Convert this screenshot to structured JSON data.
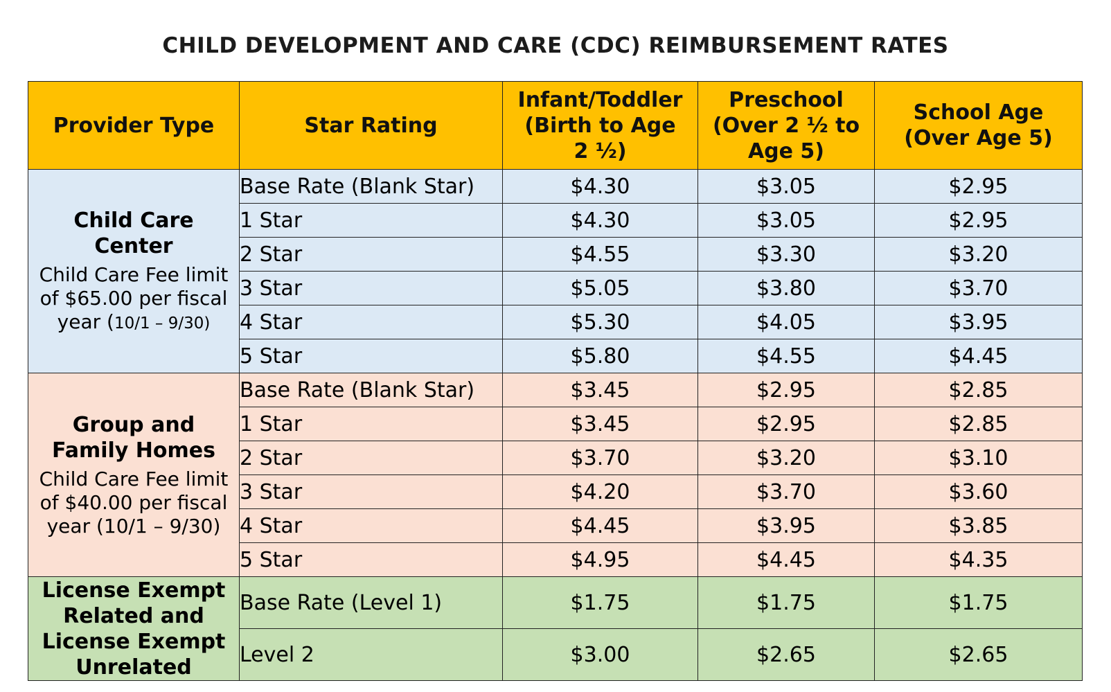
{
  "title": "CHILD DEVELOPMENT AND CARE (CDC) REIMBURSEMENT RATES",
  "headers": {
    "provider_type": "Provider Type",
    "star_rating": "Star Rating",
    "infant": "Infant/Toddler\n(Birth to Age\n2 ½)",
    "preschool": "Preschool\n(Over 2 ½ to\nAge 5)",
    "school_age": "School Age\n(Over Age 5)"
  },
  "groups": [
    {
      "name": "Child Care\nCenter",
      "note_main": "Child Care Fee limit\nof $65.00 per fiscal\nyear (",
      "note_small": "10/1 – 9/30)",
      "rows": [
        {
          "rating": "Base Rate (Blank Star)",
          "infant": "$4.30",
          "preschool": "$3.05",
          "school": "$2.95"
        },
        {
          "rating": "1 Star",
          "infant": "$4.30",
          "preschool": "$3.05",
          "school": "$2.95"
        },
        {
          "rating": "2 Star",
          "infant": "$4.55",
          "preschool": "$3.30",
          "school": "$3.20"
        },
        {
          "rating": "3 Star",
          "infant": "$5.05",
          "preschool": "$3.80",
          "school": "$3.70"
        },
        {
          "rating": "4 Star",
          "infant": "$5.30",
          "preschool": "$4.05",
          "school": "$3.95"
        },
        {
          "rating": "5 Star",
          "infant": "$5.80",
          "preschool": "$4.55",
          "school": "$4.45"
        }
      ]
    },
    {
      "name": "Group and\nFamily Homes",
      "note_main": "Child Care Fee limit\nof $40.00 per fiscal\nyear (10/1 – 9/30)",
      "rows": [
        {
          "rating": "Base Rate (Blank Star)",
          "infant": "$3.45",
          "preschool": "$2.95",
          "school": "$2.85"
        },
        {
          "rating": "1 Star",
          "infant": "$3.45",
          "preschool": "$2.95",
          "school": "$2.85"
        },
        {
          "rating": "2 Star",
          "infant": "$3.70",
          "preschool": "$3.20",
          "school": "$3.10"
        },
        {
          "rating": "3 Star",
          "infant": "$4.20",
          "preschool": "$3.70",
          "school": "$3.60"
        },
        {
          "rating": "4 Star",
          "infant": "$4.45",
          "preschool": "$3.95",
          "school": "$3.85"
        },
        {
          "rating": "5 Star",
          "infant": "$4.95",
          "preschool": "$4.45",
          "school": "$4.35"
        }
      ]
    },
    {
      "name": "License Exempt\nRelated and\nLicense Exempt\nUnrelated",
      "rows": [
        {
          "rating": "Base Rate (Level 1)",
          "infant": "$1.75",
          "preschool": "$1.75",
          "school": "$1.75"
        },
        {
          "rating": "Level 2",
          "infant": "$3.00",
          "preschool": "$2.65",
          "school": "$2.65"
        }
      ]
    }
  ]
}
